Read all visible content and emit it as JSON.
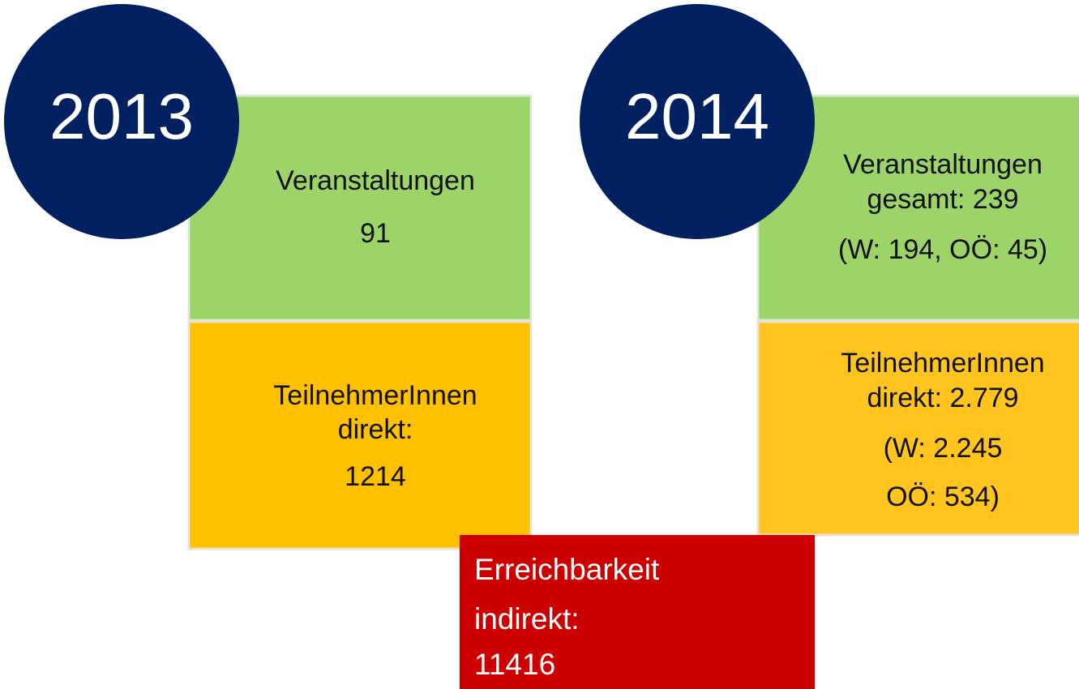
{
  "panels": [
    {
      "year": "2013",
      "events": [
        "Veranstaltungen",
        "91"
      ],
      "participants": [
        "TeilnehmerInnen",
        "direkt:",
        "1214"
      ]
    },
    {
      "year": "2014",
      "events": [
        "Veranstaltungen",
        "gesamt: 239",
        "(W: 194, OÖ: 45)"
      ],
      "participants": [
        "TeilnehmerInnen",
        "direkt: 2.779",
        "(W: 2.245",
        "OÖ: 534)"
      ]
    }
  ],
  "reach": [
    "Erreichbarkeit",
    "indirekt:",
    "11416"
  ]
}
